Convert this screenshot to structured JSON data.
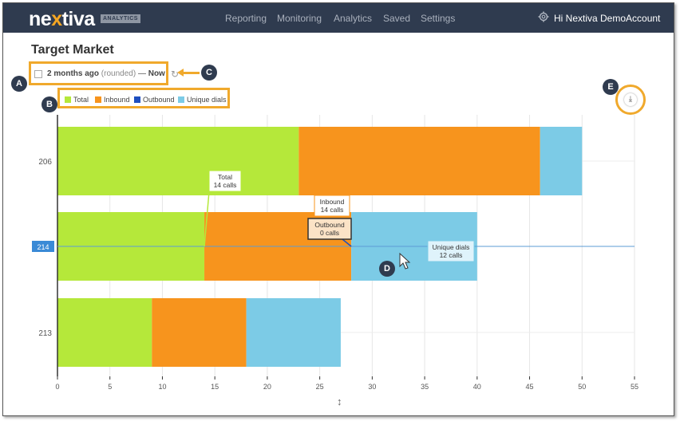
{
  "header": {
    "logo_prefix": "ne",
    "logo_x": "x",
    "logo_suffix": "tiva",
    "badge": "ANALYTICS",
    "nav": [
      "Reporting",
      "Monitoring",
      "Analytics",
      "Saved",
      "Settings"
    ],
    "user_greeting": "Hi Nextiva DemoAccount"
  },
  "page": {
    "title": "Target Market",
    "date_from": "2 months ago",
    "date_rounded": "(rounded)",
    "date_sep": "—",
    "date_to": "Now"
  },
  "legend": [
    {
      "label": "Total",
      "color": "#b5e83a"
    },
    {
      "label": "Inbound",
      "color": "#f7941d"
    },
    {
      "label": "Outbound",
      "color": "#1f4fbf"
    },
    {
      "label": "Unique dials",
      "color": "#7ccbe6"
    }
  ],
  "callouts": {
    "a": "A",
    "b": "B",
    "c": "C",
    "d": "D",
    "e": "E"
  },
  "hover_label": "214",
  "sizer_glyph": "↕",
  "chart_data": {
    "type": "bar",
    "orientation": "horizontal",
    "stacked": true,
    "categories": [
      "206",
      "214",
      "213"
    ],
    "series": [
      {
        "name": "Total",
        "values": [
          23,
          14,
          9
        ],
        "color": "#b5e83a"
      },
      {
        "name": "Inbound",
        "values": [
          23,
          14,
          9
        ],
        "color": "#f7941d"
      },
      {
        "name": "Outbound",
        "values": [
          0,
          0,
          0
        ],
        "color": "#1f4fbf"
      },
      {
        "name": "Unique dials",
        "values": [
          4,
          12,
          9
        ],
        "color": "#7ccbe6"
      }
    ],
    "xlim": [
      0,
      55
    ],
    "xticks": [
      0,
      5,
      10,
      15,
      20,
      25,
      30,
      35,
      40,
      45,
      50,
      55
    ],
    "grid": true,
    "tooltips": [
      {
        "series": "Total",
        "line1": "Total",
        "line2": "14 calls"
      },
      {
        "series": "Inbound",
        "line1": "Inbound",
        "line2": "14 calls"
      },
      {
        "series": "Outbound",
        "line1": "Outbound",
        "line2": "0 calls"
      },
      {
        "series": "Unique dials",
        "line1": "Unique dials",
        "line2": "12 calls"
      }
    ]
  }
}
